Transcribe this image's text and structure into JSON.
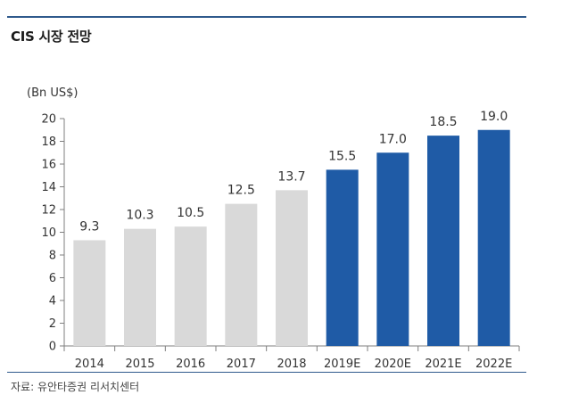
{
  "title": "CIS 시장 전망",
  "source": "자료: 유안타증권 리서치센터",
  "chart_data": {
    "type": "bar",
    "ylabel": "(Bn US$)",
    "ylim": [
      0,
      20
    ],
    "yticks": [
      0,
      2,
      4,
      6,
      8,
      10,
      12,
      14,
      16,
      18,
      20
    ],
    "grid": false,
    "categories": [
      "2014",
      "2015",
      "2016",
      "2017",
      "2018",
      "2019E",
      "2020E",
      "2021E",
      "2022E"
    ],
    "values": [
      9.3,
      10.3,
      10.5,
      12.5,
      13.7,
      15.5,
      17.0,
      18.5,
      19.0
    ],
    "data_labels": [
      "9.3",
      "10.3",
      "10.5",
      "12.5",
      "13.7",
      "15.5",
      "17.0",
      "18.5",
      "19.0"
    ],
    "colors": {
      "actual": "#d9d9d9",
      "forecast": "#1f5ba6",
      "axis": "#7f7f7f",
      "rule": "#2f5a8c"
    },
    "forecast_from_index": 5
  }
}
